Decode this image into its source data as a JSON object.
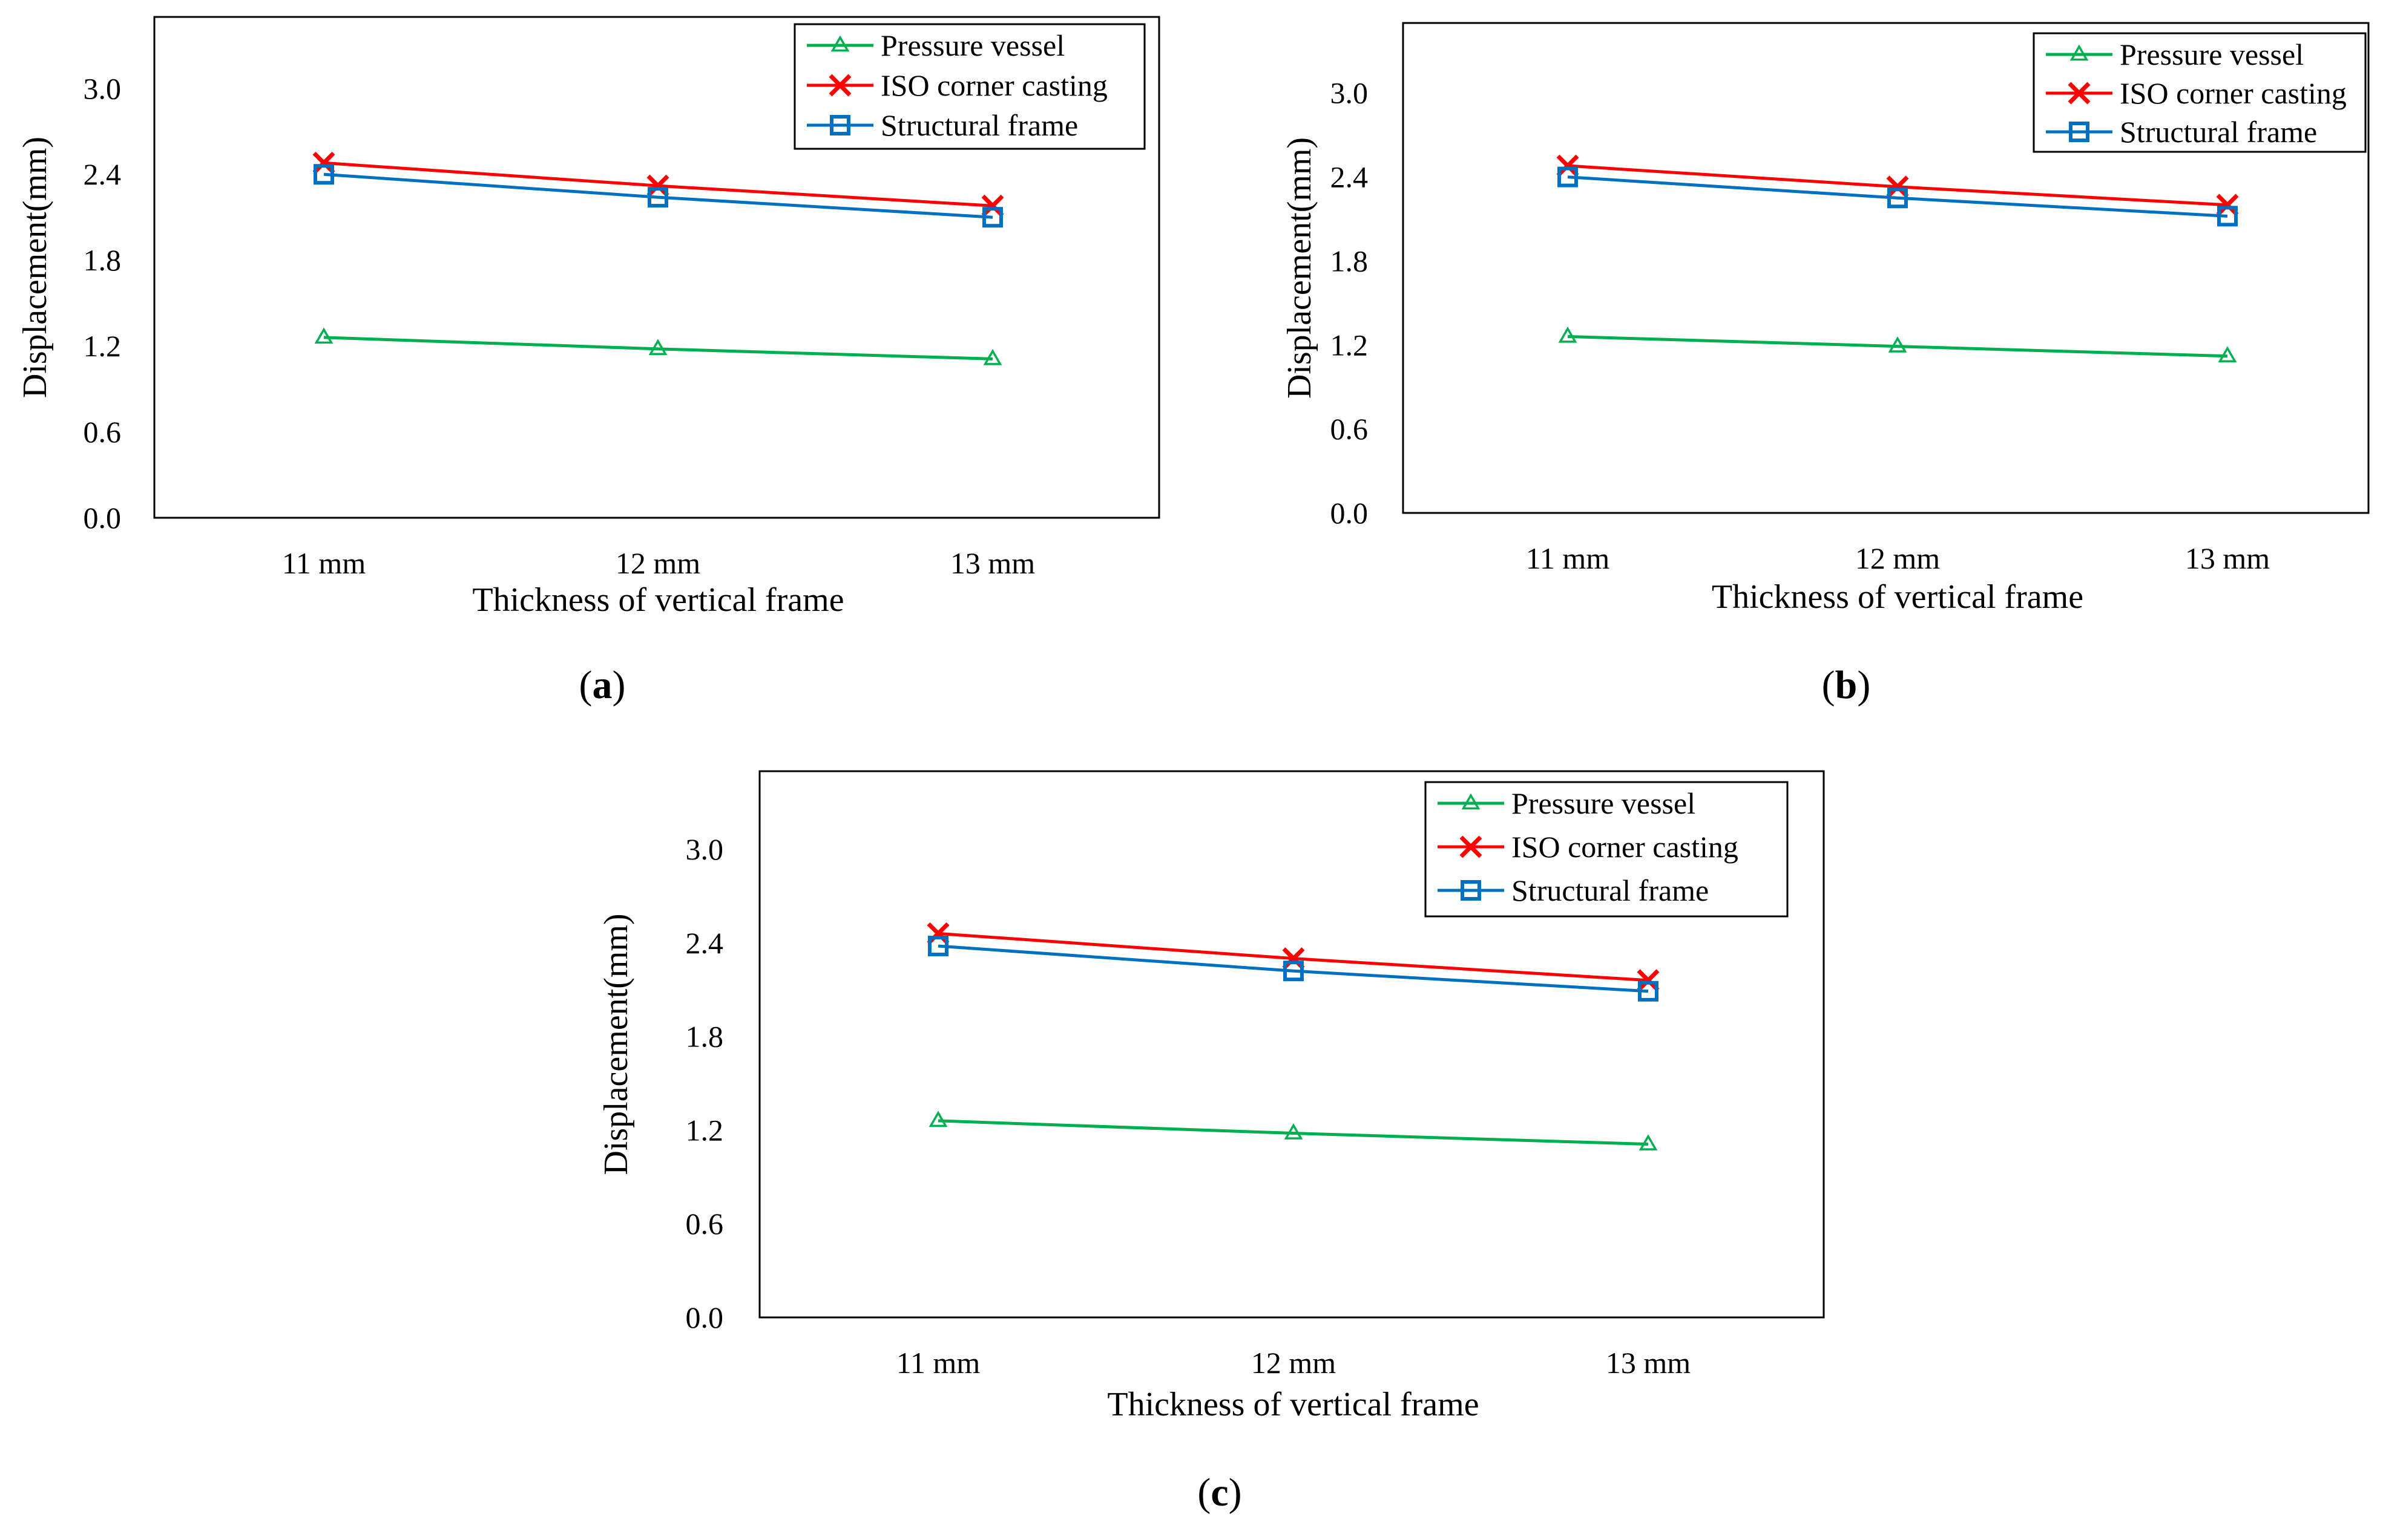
{
  "colors": {
    "pressure_vessel": "#00B050",
    "iso_corner_casting": "#FF0000",
    "structural_frame": "#0070C0"
  },
  "chart_data": [
    {
      "id": "a",
      "type": "line",
      "caption": "a",
      "categories": [
        "11 mm",
        "12 mm",
        "13 mm"
      ],
      "xlabel": "Thickness of vertical frame",
      "ylabel": "Displacement(mm)",
      "ylim": [
        0,
        3.5
      ],
      "yticks": [
        "0.0",
        "0.6",
        "1.2",
        "1.8",
        "2.4",
        "3.0"
      ],
      "legend_position": "top-right",
      "grid": false,
      "series": [
        {
          "name": "Pressure vessel",
          "color_key": "pressure_vessel",
          "marker": "triangle",
          "values": [
            1.26,
            1.18,
            1.11
          ]
        },
        {
          "name": "ISO corner casting",
          "color_key": "iso_corner_casting",
          "marker": "x",
          "values": [
            2.48,
            2.32,
            2.18
          ]
        },
        {
          "name": "Structural frame",
          "color_key": "structural_frame",
          "marker": "square",
          "values": [
            2.4,
            2.24,
            2.1
          ]
        }
      ]
    },
    {
      "id": "b",
      "type": "line",
      "caption": "b",
      "categories": [
        "11 mm",
        "12 mm",
        "13 mm"
      ],
      "xlabel": "Thickness of vertical frame",
      "ylabel": "Displacement(mm)",
      "ylim": [
        0,
        3.5
      ],
      "yticks": [
        "0.0",
        "0.6",
        "1.2",
        "1.8",
        "2.4",
        "3.0"
      ],
      "legend_position": "top-right",
      "grid": false,
      "series": [
        {
          "name": "Pressure vessel",
          "color_key": "pressure_vessel",
          "marker": "triangle",
          "values": [
            1.26,
            1.19,
            1.12
          ]
        },
        {
          "name": "ISO corner casting",
          "color_key": "iso_corner_casting",
          "marker": "x",
          "values": [
            2.48,
            2.33,
            2.2
          ]
        },
        {
          "name": "Structural frame",
          "color_key": "structural_frame",
          "marker": "square",
          "values": [
            2.4,
            2.25,
            2.12
          ]
        }
      ]
    },
    {
      "id": "c",
      "type": "line",
      "caption": "c",
      "categories": [
        "11 mm",
        "12 mm",
        "13 mm"
      ],
      "xlabel": "Thickness of vertical frame",
      "ylabel": "Displacement(mm)",
      "ylim": [
        0,
        3.5
      ],
      "yticks": [
        "0.0",
        "0.6",
        "1.2",
        "1.8",
        "2.4",
        "3.0"
      ],
      "legend_position": "top-right",
      "grid": false,
      "series": [
        {
          "name": "Pressure vessel",
          "color_key": "pressure_vessel",
          "marker": "triangle",
          "values": [
            1.26,
            1.18,
            1.11
          ]
        },
        {
          "name": "ISO corner casting",
          "color_key": "iso_corner_casting",
          "marker": "x",
          "values": [
            2.46,
            2.3,
            2.16
          ]
        },
        {
          "name": "Structural frame",
          "color_key": "structural_frame",
          "marker": "square",
          "values": [
            2.38,
            2.22,
            2.09
          ]
        }
      ]
    }
  ]
}
